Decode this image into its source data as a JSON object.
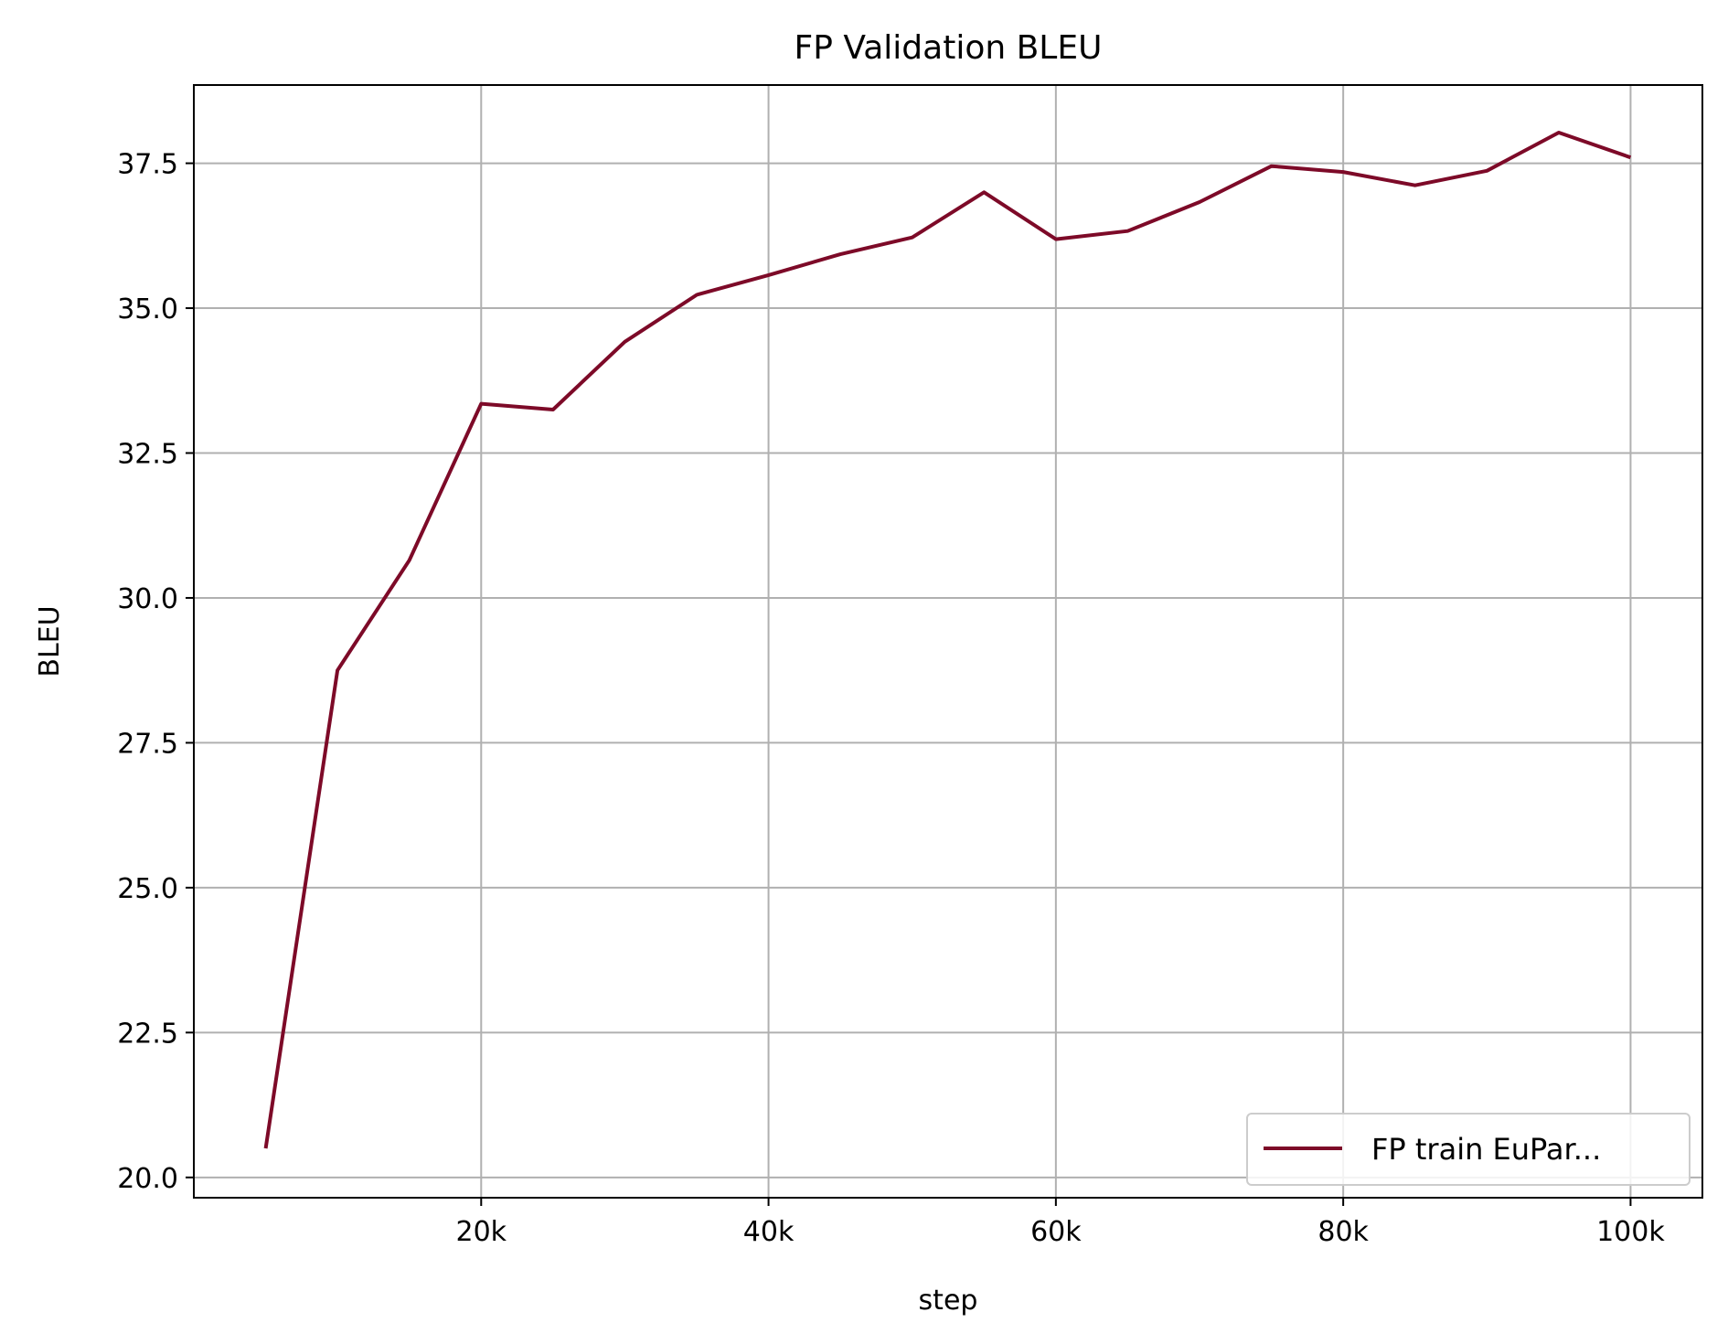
{
  "chart_data": {
    "type": "line",
    "title": "FP Validation BLEU",
    "xlabel": "step",
    "ylabel": "BLEU",
    "xlim": [
      0,
      105000
    ],
    "ylim": [
      19.65,
      38.85
    ],
    "xticks": [
      {
        "value": 20000,
        "label": "20k"
      },
      {
        "value": 40000,
        "label": "40k"
      },
      {
        "value": 60000,
        "label": "60k"
      },
      {
        "value": 80000,
        "label": "80k"
      },
      {
        "value": 100000,
        "label": "100k"
      }
    ],
    "yticks": [
      {
        "value": 20.0,
        "label": "20.0"
      },
      {
        "value": 22.5,
        "label": "22.5"
      },
      {
        "value": 25.0,
        "label": "25.0"
      },
      {
        "value": 27.5,
        "label": "27.5"
      },
      {
        "value": 30.0,
        "label": "30.0"
      },
      {
        "value": 32.5,
        "label": "32.5"
      },
      {
        "value": 35.0,
        "label": "35.0"
      },
      {
        "value": 37.5,
        "label": "37.5"
      }
    ],
    "grid": true,
    "legend_position": "lower-right",
    "series": [
      {
        "name": "FP train EuPar...",
        "color": "#7d0a28",
        "x": [
          5000,
          10000,
          15000,
          20000,
          25000,
          30000,
          35000,
          40000,
          45000,
          50000,
          55000,
          60000,
          65000,
          70000,
          75000,
          80000,
          85000,
          90000,
          95000,
          100000
        ],
        "y": [
          20.5,
          28.75,
          30.65,
          33.35,
          33.25,
          34.42,
          35.23,
          35.57,
          35.93,
          36.22,
          37.0,
          36.19,
          36.33,
          36.83,
          37.45,
          37.35,
          37.12,
          37.37,
          38.03,
          37.6
        ]
      }
    ]
  }
}
